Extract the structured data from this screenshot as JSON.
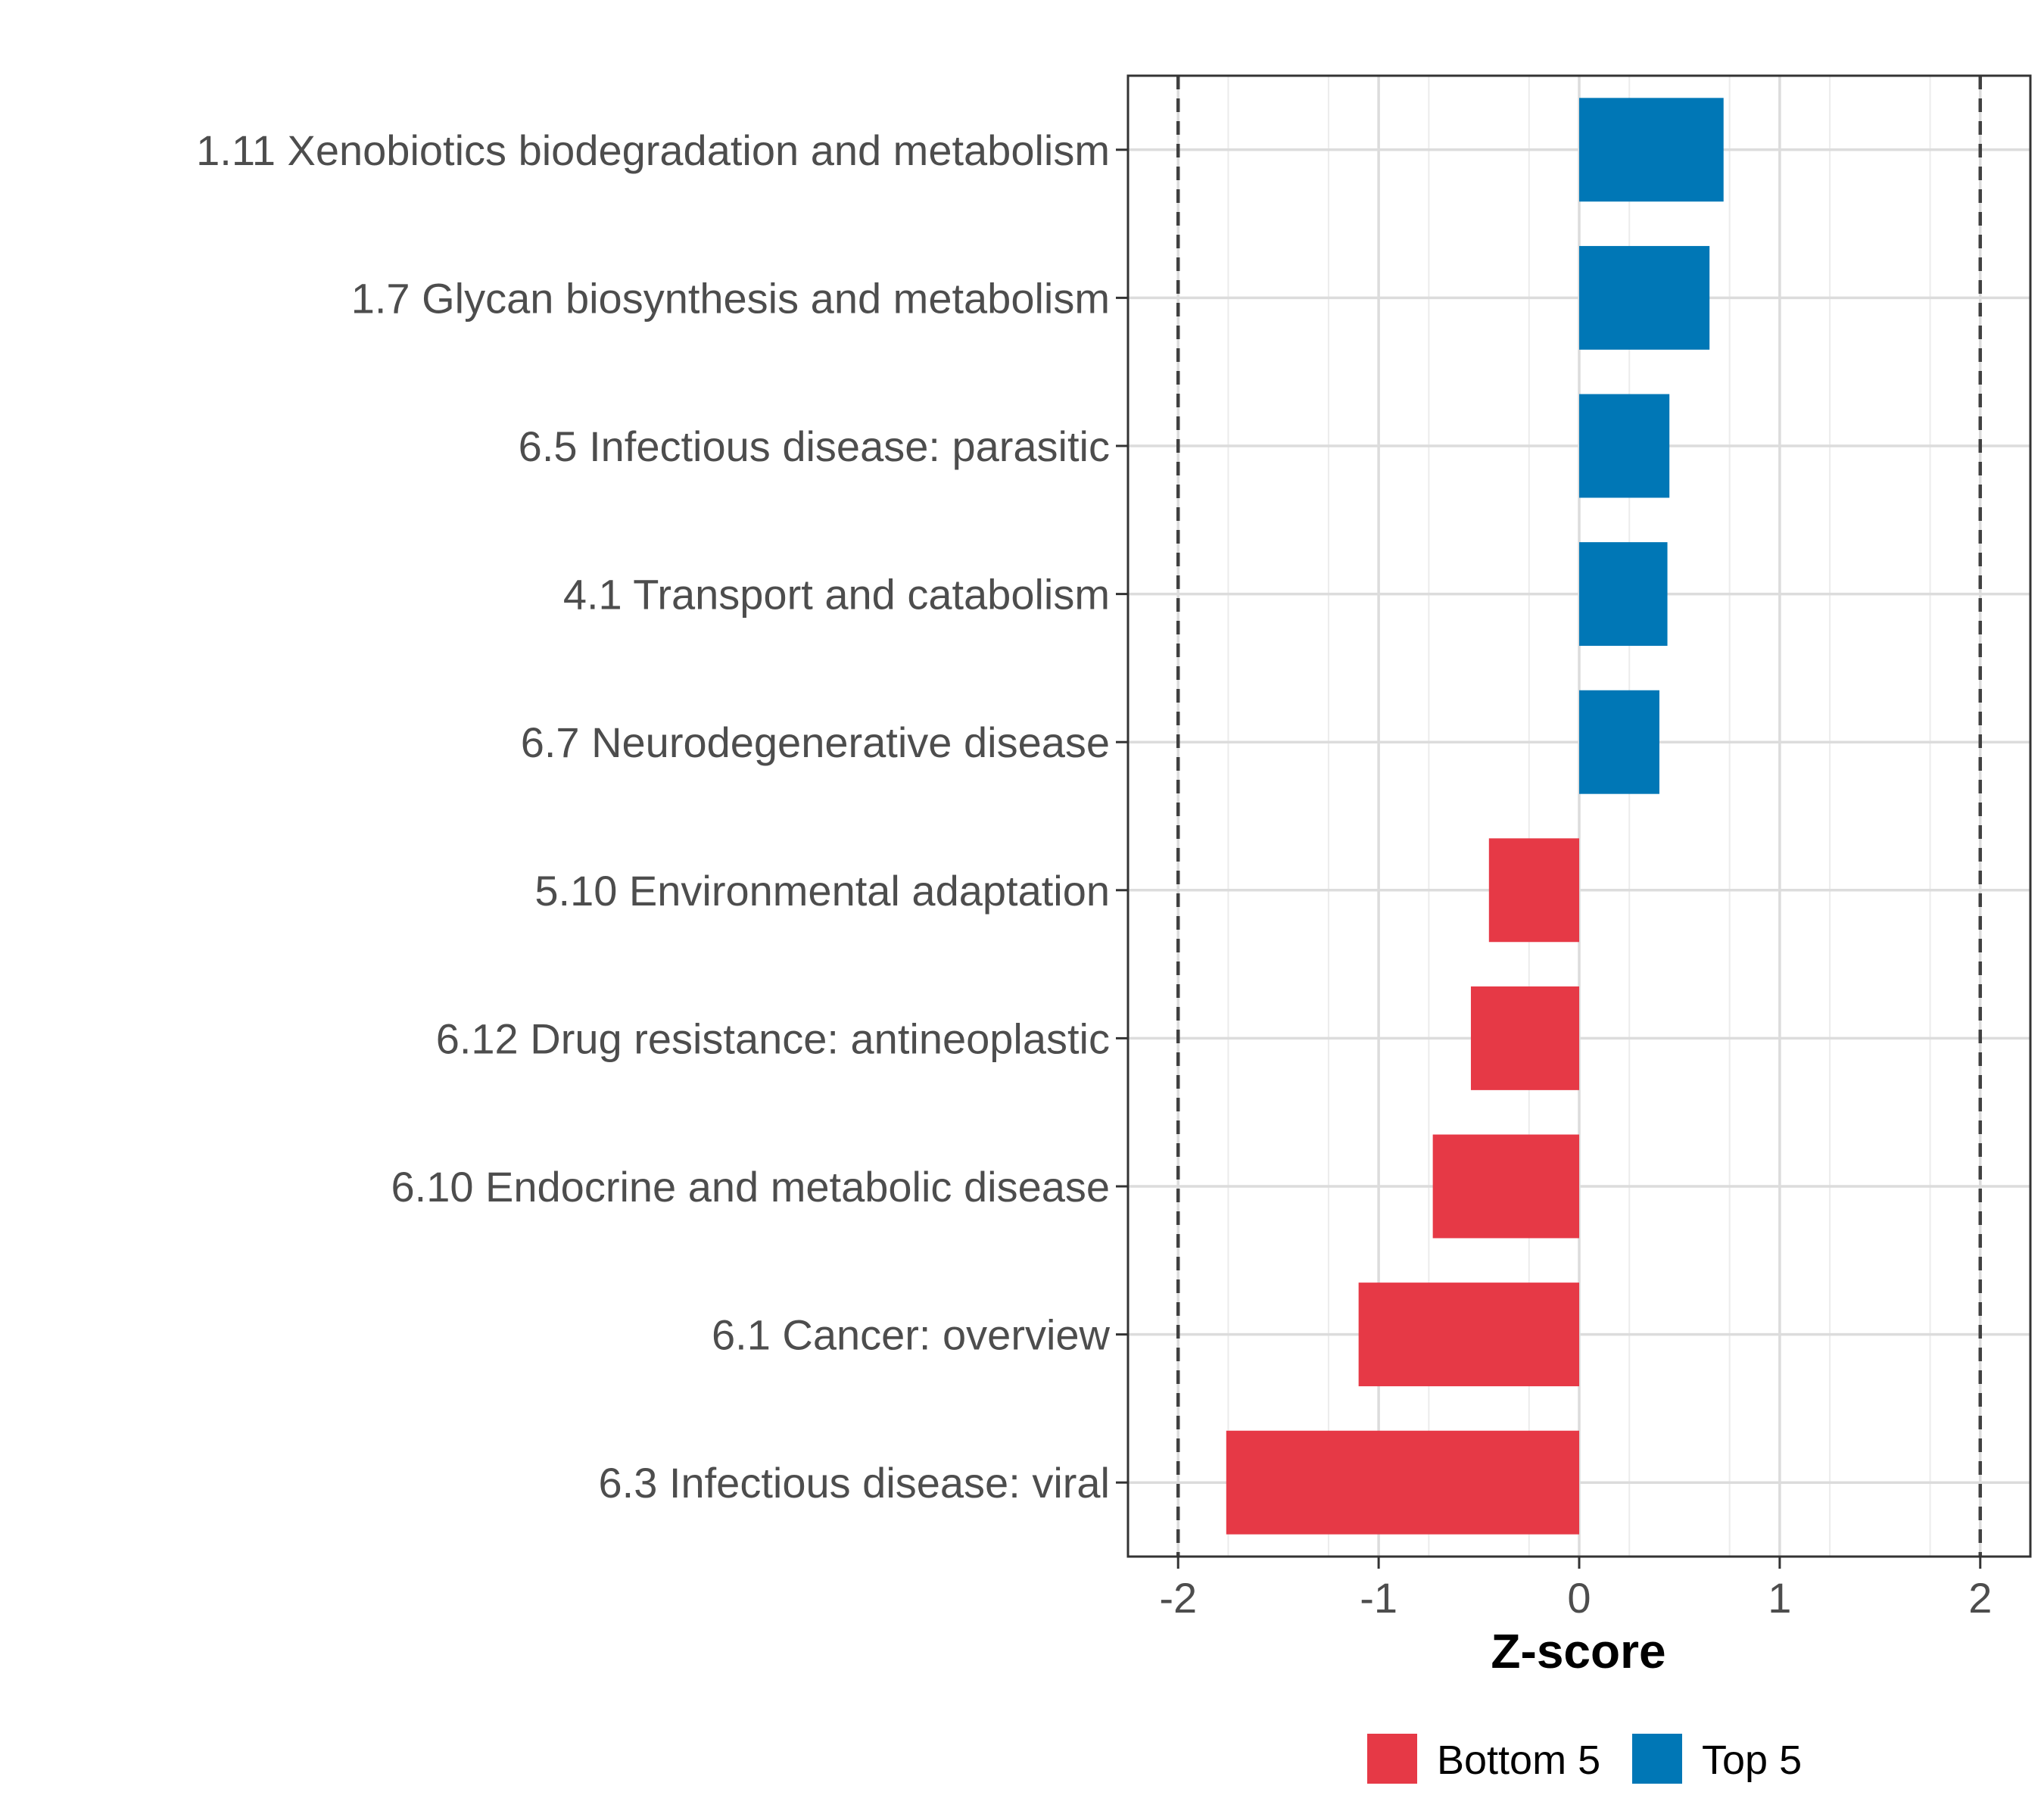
{
  "chart_data": {
    "type": "bar",
    "orientation": "horizontal",
    "xlabel": "Z-score",
    "ylabel": "",
    "xlim": [
      -2.25,
      2.25
    ],
    "x_ticks": [
      -2,
      -1,
      0,
      1,
      2
    ],
    "x_tick_labels": [
      "-2",
      "-1",
      "0",
      "1",
      "2"
    ],
    "reference_lines": [
      -2,
      2
    ],
    "grid": true,
    "legend_position": "bottom",
    "categories": [
      "1.11 Xenobiotics biodegradation and metabolism",
      "1.7 Glycan biosynthesis and metabolism",
      "6.5 Infectious disease: parasitic",
      "4.1 Transport and catabolism",
      "6.7 Neurodegenerative disease",
      "5.10 Environmental adaptation",
      "6.12 Drug resistance: antineoplastic",
      "6.10 Endocrine and metabolic disease",
      "6.1 Cancer: overview",
      "6.3 Infectious disease: viral"
    ],
    "values": [
      0.72,
      0.65,
      0.45,
      0.44,
      0.4,
      -0.45,
      -0.54,
      -0.73,
      -1.1,
      -1.76
    ],
    "groups": [
      "Top 5",
      "Top 5",
      "Top 5",
      "Top 5",
      "Top 5",
      "Bottom 5",
      "Bottom 5",
      "Bottom 5",
      "Bottom 5",
      "Bottom 5"
    ],
    "legend": [
      {
        "name": "Bottom 5",
        "color": "#e63946"
      },
      {
        "name": "Top 5",
        "color": "#0077b6"
      }
    ]
  }
}
